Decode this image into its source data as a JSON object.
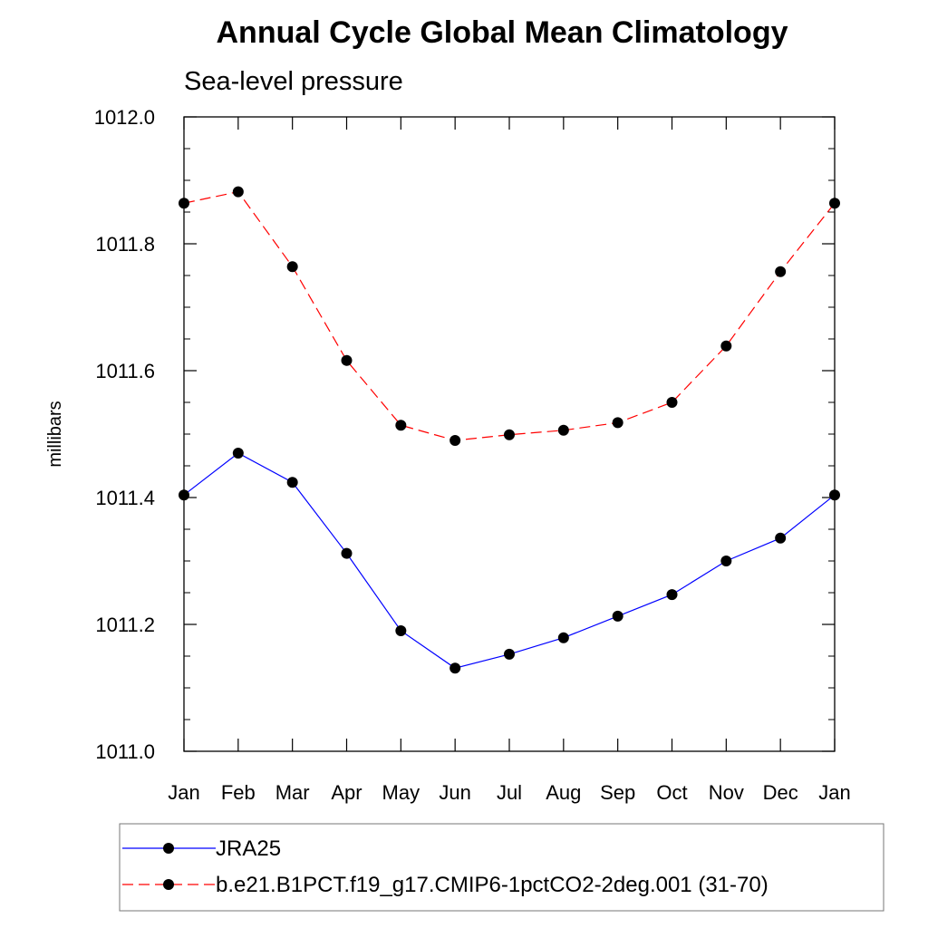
{
  "chart_data": {
    "type": "line",
    "title": "Annual Cycle Global Mean Climatology",
    "subtitle": "Sea-level pressure",
    "xlabel": "",
    "ylabel": "millibars",
    "categories": [
      "Jan",
      "Feb",
      "Mar",
      "Apr",
      "May",
      "Jun",
      "Jul",
      "Aug",
      "Sep",
      "Oct",
      "Nov",
      "Dec",
      "Jan"
    ],
    "ylim": [
      1011.0,
      1012.0
    ],
    "yticks": [
      "1011.0",
      "1011.2",
      "1011.4",
      "1011.6",
      "1011.8",
      "1012.0"
    ],
    "grid": false,
    "legend_position": "bottom",
    "series": [
      {
        "name": "JRA25",
        "color": "#0000ff",
        "style": "solid",
        "values": [
          1011.404,
          1011.47,
          1011.424,
          1011.312,
          1011.19,
          1011.131,
          1011.153,
          1011.179,
          1011.213,
          1011.247,
          1011.3,
          1011.336,
          1011.404
        ]
      },
      {
        "name": "b.e21.B1PCT.f19_g17.CMIP6-1pctCO2-2deg.001 (31-70)",
        "color": "#ff0000",
        "style": "dashed",
        "values": [
          1011.864,
          1011.882,
          1011.764,
          1011.616,
          1011.514,
          1011.49,
          1011.499,
          1011.506,
          1011.518,
          1011.55,
          1011.639,
          1011.756,
          1011.864
        ]
      }
    ]
  }
}
